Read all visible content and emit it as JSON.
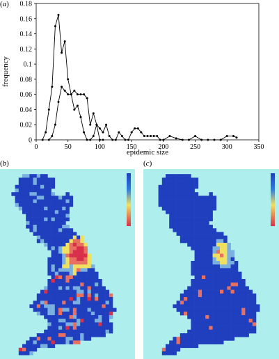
{
  "panels": {
    "a": {
      "label_open": "(",
      "label_letter": "a",
      "label_close": ")"
    },
    "b": {
      "label_open": "(",
      "label_letter": "b",
      "label_close": ")"
    },
    "c": {
      "label_open": "(",
      "label_letter": "c",
      "label_close": ")"
    }
  },
  "colors": {
    "sea": "#aeeeec",
    "map_low": "#1f3fbf",
    "map_mid": "#f0e060",
    "map_high": "#d8304a"
  },
  "chart_data": {
    "type": "line",
    "xlabel": "epidemic size",
    "ylabel": "frequency",
    "xlim": [
      0,
      350
    ],
    "ylim": [
      0,
      0.18
    ],
    "xticks": [
      0,
      50,
      100,
      150,
      200,
      250,
      300,
      350
    ],
    "yticks": [
      0,
      0.02,
      0.04,
      0.06,
      0.08,
      0.1,
      0.12,
      0.14,
      0.16,
      0.18
    ],
    "grid": false,
    "series": [
      {
        "x": [
          10,
          15,
          20,
          25,
          30,
          35,
          40,
          45,
          50,
          55,
          60,
          65,
          70,
          75,
          80,
          85,
          90,
          95,
          100,
          105
        ],
        "values": [
          0.0,
          0.01,
          0.04,
          0.07,
          0.15,
          0.165,
          0.115,
          0.13,
          0.08,
          0.06,
          0.04,
          0.045,
          0.03,
          0.01,
          0.0,
          0.0,
          0.005,
          0.02,
          0.0,
          0.0
        ]
      },
      {
        "x": [
          20,
          25,
          30,
          35,
          40,
          45,
          50,
          55,
          60,
          65,
          70,
          75,
          80,
          85,
          90,
          95,
          100,
          105,
          110,
          115,
          120,
          125,
          130,
          135,
          140,
          145,
          150,
          155,
          160,
          165,
          170,
          175,
          180,
          185,
          190,
          195,
          200,
          210,
          220,
          230,
          240,
          250,
          260,
          270,
          280,
          290,
          300,
          310,
          315
        ],
        "values": [
          0.0,
          0.005,
          0.02,
          0.05,
          0.07,
          0.065,
          0.06,
          0.06,
          0.065,
          0.06,
          0.06,
          0.06,
          0.055,
          0.02,
          0.035,
          0.02,
          0.015,
          0.01,
          0.02,
          0.005,
          0.0,
          0.0,
          0.01,
          0.005,
          0.0,
          0.0,
          0.01,
          0.015,
          0.015,
          0.01,
          0.005,
          0.005,
          0.005,
          0.005,
          0.005,
          0.0,
          0.0,
          0.005,
          0.002,
          0.0,
          0.0,
          0.005,
          0.0,
          0.0,
          0.0,
          0.0,
          0.005,
          0.005,
          0.003
        ]
      }
    ]
  }
}
